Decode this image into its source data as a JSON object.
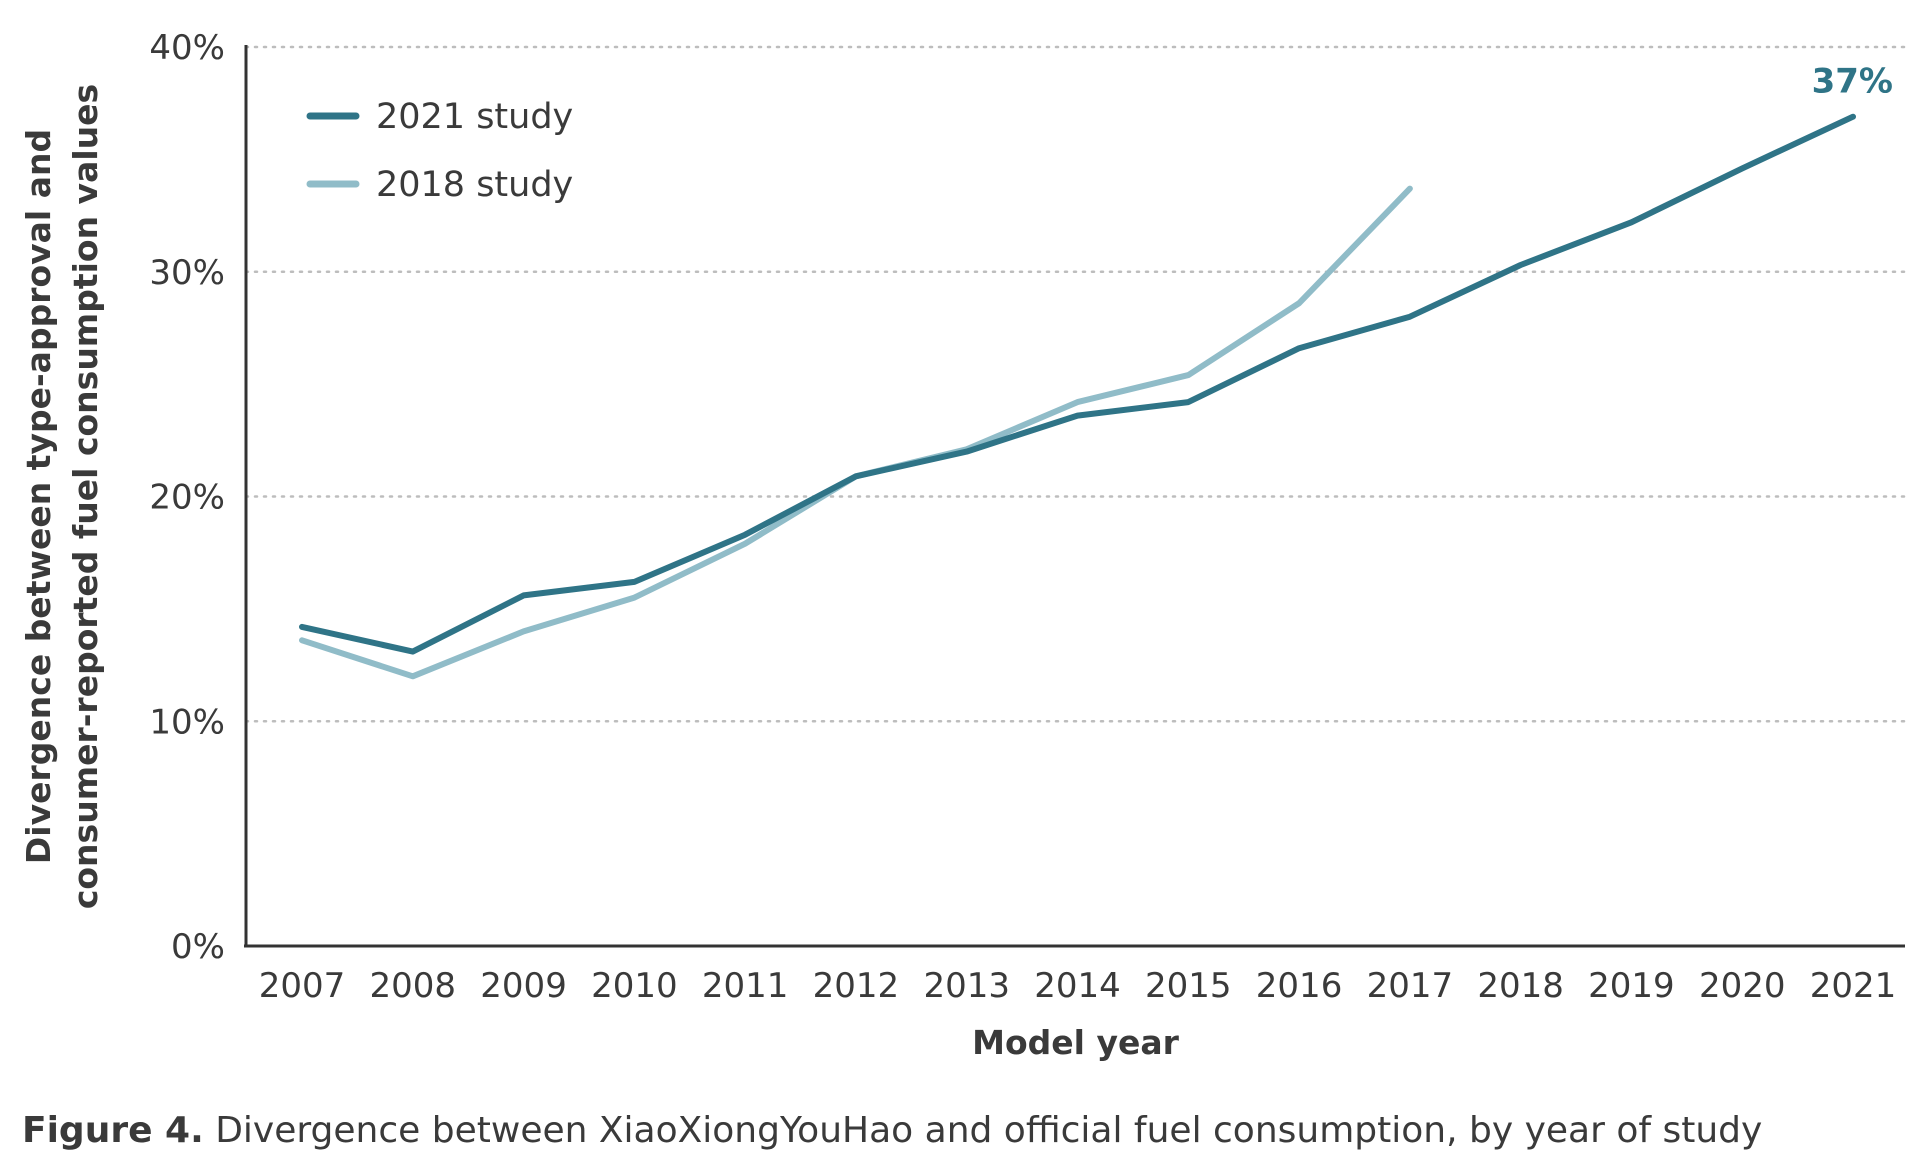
{
  "chart_data": {
    "type": "line",
    "xlabel": "Model year",
    "ylabel_lines": [
      "Divergence between type-approval and",
      "consumer-reported fuel consumption values"
    ],
    "x": [
      2007,
      2008,
      2009,
      2010,
      2011,
      2012,
      2013,
      2014,
      2015,
      2016,
      2017,
      2018,
      2019,
      2020,
      2021
    ],
    "y_ticks": [
      "0%",
      "10%",
      "20%",
      "30%",
      "40%"
    ],
    "ylim": [
      0,
      40
    ],
    "grid": "horizontal dotted",
    "legend_position": "top-left",
    "series": [
      {
        "name": "2021 study",
        "color": "#2f7487",
        "values": [
          14.2,
          13.1,
          15.6,
          16.2,
          18.3,
          20.9,
          22.0,
          23.6,
          24.2,
          26.6,
          28.0,
          30.3,
          32.2,
          34.6,
          36.9
        ]
      },
      {
        "name": "2018 study",
        "color": "#90bcc8",
        "values": [
          13.6,
          12.0,
          14.0,
          15.5,
          17.9,
          20.9,
          22.1,
          24.2,
          25.4,
          28.6,
          33.7,
          null,
          null,
          null,
          null
        ]
      }
    ],
    "annotations": [
      {
        "text": "37%",
        "series": "2021 study",
        "x": 2021
      }
    ]
  },
  "caption": {
    "label": "Figure 4.",
    "text": " Divergence between XiaoXiongYouHao and official fuel consumption, by year of study"
  }
}
